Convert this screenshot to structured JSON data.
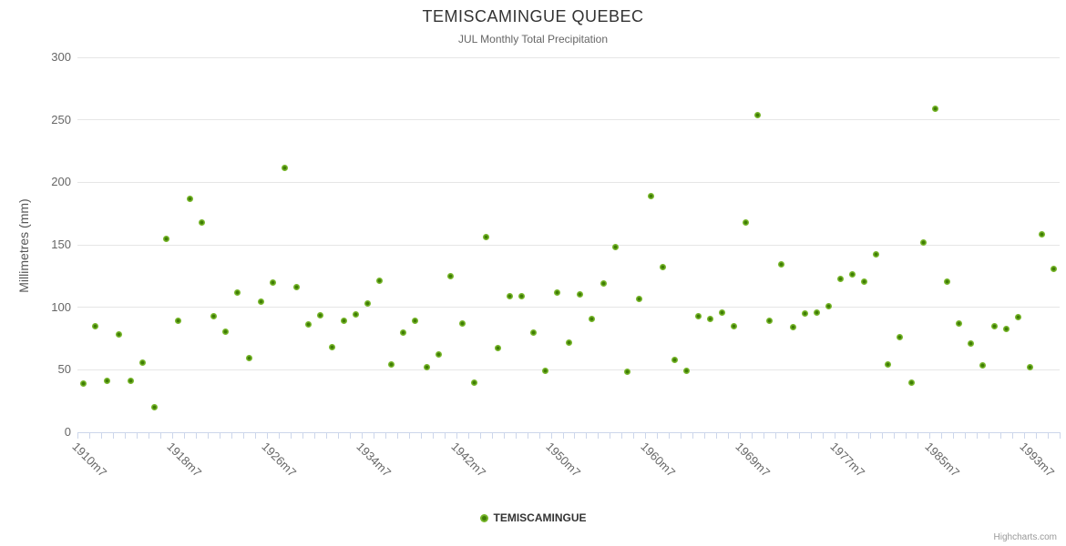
{
  "chart": {
    "title": "TEMISCAMINGUE QUEBEC",
    "subtitle": "JUL Monthly Total Precipitation",
    "y_axis_title": "Millimetres (mm)",
    "legend_label": "TEMISCAMINGUE",
    "credits": "Highcharts.com"
  },
  "colors": {
    "marker_outer": "#77b62a",
    "marker_inner": "#3f7d05",
    "grid": "#e6e6e6",
    "axis_line": "#ccd6eb",
    "title_text": "#333333",
    "label_text": "#666666",
    "credits_text": "#999999"
  },
  "chart_data": {
    "type": "scatter",
    "title": "TEMISCAMINGUE QUEBEC",
    "subtitle": "JUL Monthly Total Precipitation",
    "xlabel": "",
    "ylabel": "Millimetres (mm)",
    "ylim": [
      0,
      300
    ],
    "yticks": [
      0,
      50,
      100,
      150,
      200,
      250,
      300
    ],
    "grid": "horizontal-only",
    "legend_position": "bottom-center",
    "series_name": "TEMISCAMINGUE",
    "num_categories": 83,
    "x_tick_labels": [
      {
        "index": 0,
        "label": "1910m7"
      },
      {
        "index": 8,
        "label": "1918m7"
      },
      {
        "index": 16,
        "label": "1926m7"
      },
      {
        "index": 24,
        "label": "1934m7"
      },
      {
        "index": 32,
        "label": "1942m7"
      },
      {
        "index": 40,
        "label": "1950m7"
      },
      {
        "index": 48,
        "label": "1960m7"
      },
      {
        "index": 56,
        "label": "1969m7"
      },
      {
        "index": 64,
        "label": "1977m7"
      },
      {
        "index": 72,
        "label": "1985m7"
      },
      {
        "index": 80,
        "label": "1993m7"
      }
    ],
    "values": [
      39,
      85,
      41,
      78,
      41,
      56,
      20,
      155,
      89,
      187,
      168,
      92.5,
      80.5,
      112,
      59,
      104.5,
      120,
      211.5,
      116,
      86.5,
      93.5,
      68,
      89,
      94,
      103,
      121,
      54,
      80,
      89.5,
      52,
      62.5,
      125,
      87,
      40,
      156.5,
      67,
      109,
      109,
      80,
      49,
      112,
      72,
      110.5,
      90.5,
      119,
      148.5,
      48.5,
      106.5,
      189,
      132.5,
      58,
      49,
      92.5,
      91,
      95.5,
      84.5,
      168,
      254,
      89,
      134,
      84,
      95,
      95.5,
      101,
      122.5,
      126,
      120.5,
      142,
      54,
      76,
      40,
      152,
      259,
      120.5,
      87,
      71,
      53.5,
      85,
      82.5,
      92,
      52,
      158.5,
      131
    ]
  }
}
